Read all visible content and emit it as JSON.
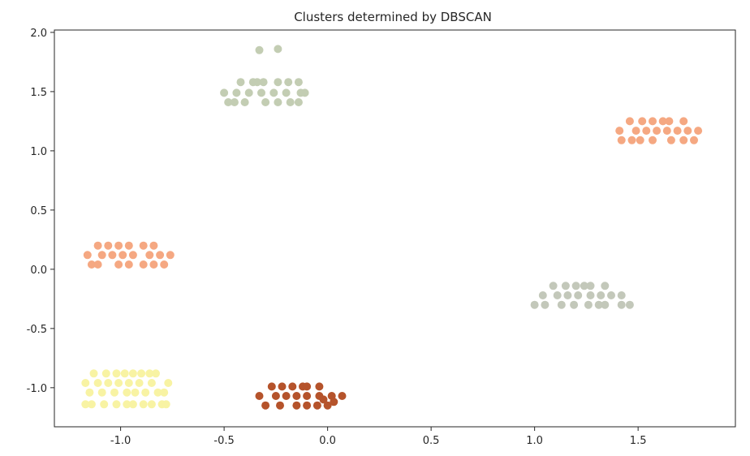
{
  "chart_data": {
    "type": "scatter",
    "title": "Clusters determined by DBSCAN",
    "xlabel": "",
    "ylabel": "",
    "xlim": [
      -1.32,
      1.97
    ],
    "ylim": [
      -1.33,
      2.02
    ],
    "xticks": [
      -1.0,
      -0.5,
      0.0,
      0.5,
      1.0,
      1.5
    ],
    "xtick_labels": [
      "-1.0",
      "-0.5",
      "0.0",
      "0.5",
      "1.0",
      "1.5"
    ],
    "yticks": [
      -1.0,
      -0.5,
      0.0,
      0.5,
      1.0,
      1.5,
      2.0
    ],
    "ytick_labels": [
      "-1.0",
      "-0.5",
      "0.0",
      "0.5",
      "1.0",
      "1.5",
      "2.0"
    ],
    "grid": false,
    "legend": "none",
    "clusters": [
      {
        "color": "#f5a882",
        "points": [
          [
            -1.11,
            0.2
          ],
          [
            -1.06,
            0.2
          ],
          [
            -1.01,
            0.2
          ],
          [
            -0.96,
            0.2
          ],
          [
            -0.89,
            0.2
          ],
          [
            -0.84,
            0.2
          ],
          [
            -1.16,
            0.12
          ],
          [
            -1.09,
            0.12
          ],
          [
            -1.04,
            0.12
          ],
          [
            -0.99,
            0.12
          ],
          [
            -0.94,
            0.12
          ],
          [
            -0.86,
            0.12
          ],
          [
            -0.81,
            0.12
          ],
          [
            -0.76,
            0.12
          ],
          [
            -1.14,
            0.04
          ],
          [
            -1.11,
            0.04
          ],
          [
            -1.01,
            0.04
          ],
          [
            -0.96,
            0.04
          ],
          [
            -0.89,
            0.04
          ],
          [
            -0.84,
            0.04
          ],
          [
            -0.79,
            0.04
          ]
        ]
      },
      {
        "color": "#f5a882",
        "points": [
          [
            1.46,
            1.25
          ],
          [
            1.52,
            1.25
          ],
          [
            1.57,
            1.25
          ],
          [
            1.62,
            1.25
          ],
          [
            1.65,
            1.25
          ],
          [
            1.72,
            1.25
          ],
          [
            1.41,
            1.17
          ],
          [
            1.49,
            1.17
          ],
          [
            1.54,
            1.17
          ],
          [
            1.59,
            1.17
          ],
          [
            1.64,
            1.17
          ],
          [
            1.69,
            1.17
          ],
          [
            1.74,
            1.17
          ],
          [
            1.79,
            1.17
          ],
          [
            1.42,
            1.09
          ],
          [
            1.47,
            1.09
          ],
          [
            1.51,
            1.09
          ],
          [
            1.57,
            1.09
          ],
          [
            1.66,
            1.09
          ],
          [
            1.72,
            1.09
          ],
          [
            1.77,
            1.09
          ]
        ]
      },
      {
        "color": "#c3cdb3",
        "points": [
          [
            -0.33,
            1.85
          ],
          [
            -0.24,
            1.86
          ],
          [
            -0.42,
            1.58
          ],
          [
            -0.36,
            1.58
          ],
          [
            -0.34,
            1.58
          ],
          [
            -0.31,
            1.58
          ],
          [
            -0.24,
            1.58
          ],
          [
            -0.19,
            1.58
          ],
          [
            -0.14,
            1.58
          ],
          [
            -0.5,
            1.49
          ],
          [
            -0.44,
            1.49
          ],
          [
            -0.38,
            1.49
          ],
          [
            -0.32,
            1.49
          ],
          [
            -0.26,
            1.49
          ],
          [
            -0.2,
            1.49
          ],
          [
            -0.13,
            1.49
          ],
          [
            -0.11,
            1.49
          ],
          [
            -0.48,
            1.41
          ],
          [
            -0.45,
            1.41
          ],
          [
            -0.4,
            1.41
          ],
          [
            -0.3,
            1.41
          ],
          [
            -0.24,
            1.41
          ],
          [
            -0.18,
            1.41
          ],
          [
            -0.14,
            1.41
          ]
        ]
      },
      {
        "color": "#c3c8ba",
        "points": [
          [
            1.09,
            -0.14
          ],
          [
            1.15,
            -0.14
          ],
          [
            1.2,
            -0.14
          ],
          [
            1.24,
            -0.14
          ],
          [
            1.27,
            -0.14
          ],
          [
            1.34,
            -0.14
          ],
          [
            1.04,
            -0.22
          ],
          [
            1.11,
            -0.22
          ],
          [
            1.16,
            -0.22
          ],
          [
            1.21,
            -0.22
          ],
          [
            1.27,
            -0.22
          ],
          [
            1.32,
            -0.22
          ],
          [
            1.37,
            -0.22
          ],
          [
            1.42,
            -0.22
          ],
          [
            1.0,
            -0.3
          ],
          [
            1.05,
            -0.3
          ],
          [
            1.13,
            -0.3
          ],
          [
            1.19,
            -0.3
          ],
          [
            1.26,
            -0.3
          ],
          [
            1.31,
            -0.3
          ],
          [
            1.34,
            -0.3
          ],
          [
            1.42,
            -0.3
          ],
          [
            1.46,
            -0.3
          ]
        ]
      },
      {
        "color": "#f8f3a3",
        "points": [
          [
            -1.13,
            -0.88
          ],
          [
            -1.07,
            -0.88
          ],
          [
            -1.02,
            -0.88
          ],
          [
            -0.98,
            -0.88
          ],
          [
            -0.94,
            -0.88
          ],
          [
            -0.9,
            -0.88
          ],
          [
            -0.86,
            -0.88
          ],
          [
            -0.83,
            -0.88
          ],
          [
            -1.17,
            -0.96
          ],
          [
            -1.11,
            -0.96
          ],
          [
            -1.06,
            -0.96
          ],
          [
            -1.01,
            -0.96
          ],
          [
            -0.96,
            -0.96
          ],
          [
            -0.91,
            -0.96
          ],
          [
            -0.85,
            -0.96
          ],
          [
            -0.77,
            -0.96
          ],
          [
            -1.15,
            -1.04
          ],
          [
            -1.09,
            -1.04
          ],
          [
            -1.03,
            -1.04
          ],
          [
            -0.97,
            -1.04
          ],
          [
            -0.93,
            -1.04
          ],
          [
            -0.88,
            -1.04
          ],
          [
            -0.82,
            -1.04
          ],
          [
            -0.79,
            -1.04
          ],
          [
            -1.17,
            -1.14
          ],
          [
            -1.14,
            -1.14
          ],
          [
            -1.08,
            -1.14
          ],
          [
            -1.02,
            -1.14
          ],
          [
            -0.97,
            -1.14
          ],
          [
            -0.94,
            -1.14
          ],
          [
            -0.89,
            -1.14
          ],
          [
            -0.85,
            -1.14
          ],
          [
            -0.8,
            -1.14
          ],
          [
            -0.78,
            -1.14
          ]
        ]
      },
      {
        "color": "#b5532b",
        "points": [
          [
            -0.27,
            -0.99
          ],
          [
            -0.22,
            -0.99
          ],
          [
            -0.17,
            -0.99
          ],
          [
            -0.12,
            -0.99
          ],
          [
            -0.1,
            -0.99
          ],
          [
            -0.04,
            -0.99
          ],
          [
            -0.33,
            -1.07
          ],
          [
            -0.25,
            -1.07
          ],
          [
            -0.2,
            -1.07
          ],
          [
            -0.15,
            -1.07
          ],
          [
            -0.1,
            -1.07
          ],
          [
            -0.04,
            -1.07
          ],
          [
            -0.02,
            -1.1
          ],
          [
            0.02,
            -1.07
          ],
          [
            0.07,
            -1.07
          ],
          [
            -0.3,
            -1.15
          ],
          [
            -0.23,
            -1.15
          ],
          [
            -0.15,
            -1.15
          ],
          [
            -0.1,
            -1.15
          ],
          [
            -0.05,
            -1.15
          ],
          [
            0.0,
            -1.15
          ],
          [
            0.03,
            -1.12
          ]
        ]
      }
    ]
  }
}
